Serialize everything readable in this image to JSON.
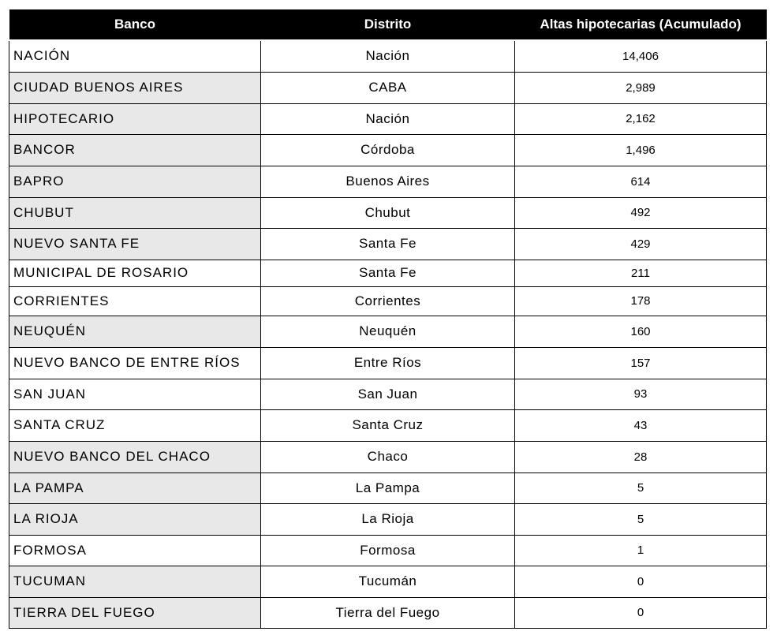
{
  "chart_data": {
    "type": "table",
    "columns": [
      "Banco",
      "Distrito",
      "Altas hipotecarias (Acumulado)"
    ],
    "header_bg": "#000000",
    "shade_color": "#e8e8e8",
    "rows": [
      {
        "banco": "NACIÓN",
        "distrito": "Nación",
        "altas": "14,406",
        "shaded": false
      },
      {
        "banco": "CIUDAD BUENOS AIRES",
        "distrito": "CABA",
        "altas": "2,989",
        "shaded": true
      },
      {
        "banco": "HIPOTECARIO",
        "distrito": "Nación",
        "altas": "2,162",
        "shaded": true
      },
      {
        "banco": "BANCOR",
        "distrito": "Córdoba",
        "altas": "1,496",
        "shaded": true
      },
      {
        "banco": "BAPRO",
        "distrito": "Buenos Aires",
        "altas": "614",
        "shaded": true
      },
      {
        "banco": "CHUBUT",
        "distrito": "Chubut",
        "altas": "492",
        "shaded": true
      },
      {
        "banco": "NUEVO SANTA FE",
        "distrito": "Santa Fe",
        "altas": "429",
        "shaded": true
      },
      {
        "banco": "MUNICIPAL DE ROSARIO",
        "distrito": "Santa Fe",
        "altas": "211",
        "shaded": false
      },
      {
        "banco": "CORRIENTES",
        "distrito": "Corrientes",
        "altas": "178",
        "shaded": false
      },
      {
        "banco": "NEUQUÉN",
        "distrito": "Neuquén",
        "altas": "160",
        "shaded": true
      },
      {
        "banco": "NUEVO BANCO DE ENTRE RÍOS",
        "distrito": "Entre Ríos",
        "altas": "157",
        "shaded": false
      },
      {
        "banco": "SAN JUAN",
        "distrito": "San Juan",
        "altas": "93",
        "shaded": false
      },
      {
        "banco": "SANTA CRUZ",
        "distrito": "Santa Cruz",
        "altas": "43",
        "shaded": false
      },
      {
        "banco": "NUEVO BANCO DEL CHACO",
        "distrito": "Chaco",
        "altas": "28",
        "shaded": true
      },
      {
        "banco": "LA PAMPA",
        "distrito": "La Pampa",
        "altas": "5",
        "shaded": true
      },
      {
        "banco": "LA RIOJA",
        "distrito": "La Rioja",
        "altas": "5",
        "shaded": true
      },
      {
        "banco": "FORMOSA",
        "distrito": "Formosa",
        "altas": "1",
        "shaded": false
      },
      {
        "banco": "TUCUMAN",
        "distrito": "Tucumán",
        "altas": "0",
        "shaded": true
      },
      {
        "banco": "TIERRA DEL FUEGO",
        "distrito": "Tierra del Fuego",
        "altas": "0",
        "shaded": true
      }
    ]
  }
}
